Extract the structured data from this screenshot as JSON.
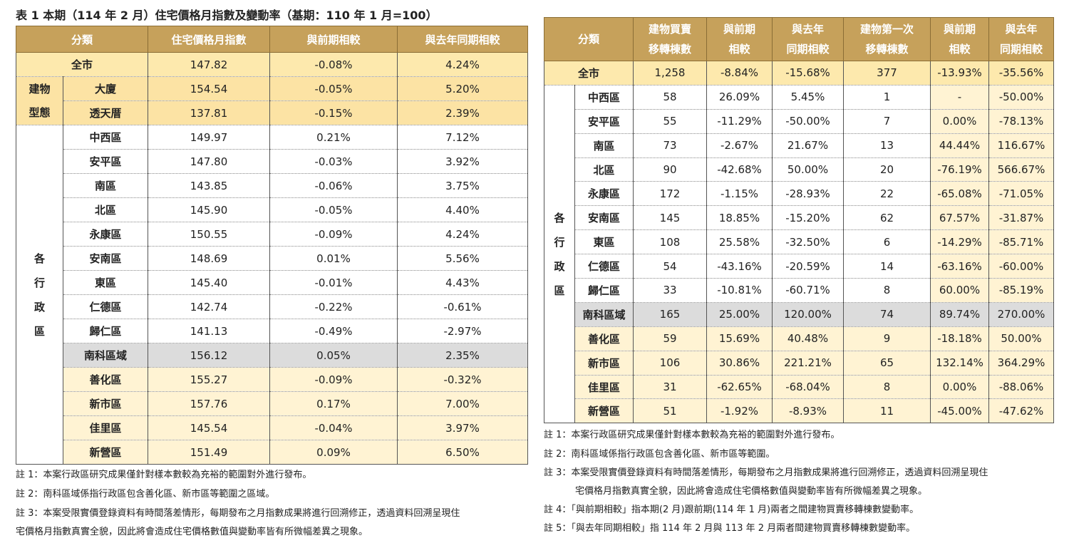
{
  "left_table": {
    "title": "表 1 本期（114 年 2 月）住宅價格月指數及變動率（基期：110 年 1 月=100）",
    "header": [
      "分類",
      "住宅價格月指數",
      "與前期相較",
      "與去年同期相較"
    ],
    "overall": {
      "label": "全市",
      "values": [
        "147.82",
        "-0.08%",
        "4.24%"
      ]
    },
    "building_type": {
      "label": "建物型態",
      "rows": [
        {
          "name": "大廈",
          "values": [
            "154.54",
            "-0.05%",
            "5.20%"
          ]
        },
        {
          "name": "透天厝",
          "values": [
            "137.81",
            "-0.15%",
            "2.39%"
          ]
        }
      ]
    },
    "districts": {
      "label": "各行政區",
      "rows": [
        {
          "name": "中西區",
          "values": [
            "149.97",
            "0.21%",
            "7.12%"
          ]
        },
        {
          "name": "安平區",
          "values": [
            "147.80",
            "-0.03%",
            "3.92%"
          ]
        },
        {
          "name": "南區",
          "values": [
            "143.85",
            "-0.06%",
            "3.75%"
          ]
        },
        {
          "name": "北區",
          "values": [
            "145.90",
            "-0.05%",
            "4.40%"
          ]
        },
        {
          "name": "永康區",
          "values": [
            "150.55",
            "-0.09%",
            "4.24%"
          ]
        },
        {
          "name": "安南區",
          "values": [
            "148.69",
            "0.01%",
            "5.56%"
          ]
        },
        {
          "name": "東區",
          "values": [
            "145.40",
            "-0.01%",
            "4.43%"
          ]
        },
        {
          "name": "仁德區",
          "values": [
            "142.74",
            "-0.22%",
            "-0.61%"
          ]
        },
        {
          "name": "歸仁區",
          "values": [
            "141.13",
            "-0.49%",
            "-2.97%"
          ]
        },
        {
          "name": "南科區域",
          "values": [
            "156.12",
            "0.05%",
            "2.35%"
          ]
        },
        {
          "name": "善化區",
          "values": [
            "155.27",
            "-0.09%",
            "-0.32%"
          ]
        },
        {
          "name": "新市區",
          "values": [
            "157.76",
            "0.17%",
            "7.00%"
          ]
        },
        {
          "name": "佳里區",
          "values": [
            "145.54",
            "-0.04%",
            "3.97%"
          ]
        },
        {
          "name": "新營區",
          "values": [
            "151.49",
            "0.09%",
            "6.50%"
          ]
        }
      ]
    }
  },
  "left_notes": [
    "註 1：本案行政區研究成果僅針對樣本數較為充裕的範圍對外進行發布。",
    "註 2：南科區域係指行政區包含善化區、新市區等範圍之區域。",
    "註 3：本案受限實價登錄資料有時間落差情形，每期發布之月指數成果將進行回溯修正，透過資料回溯呈現住",
    "宅價格月指數真實全貌，因此將會造成住宅價格數值與變動率皆有所微幅差異之現象。"
  ],
  "right_table": {
    "header": [
      [
        "分類"
      ],
      [
        "建物買賣",
        "移轉棟數"
      ],
      [
        "與前期",
        "相較"
      ],
      [
        "與去年",
        "同期相較"
      ],
      [
        "建物第一次",
        "移轉棟數"
      ],
      [
        "與前期",
        "相較"
      ],
      [
        "與去年",
        "同期相較"
      ]
    ],
    "overall": {
      "label": "全市",
      "values": [
        "1,258",
        "-8.84%",
        "-15.68%",
        "377",
        "-13.93%",
        "-35.56%"
      ]
    },
    "districts": {
      "label": "各行政區",
      "rows": [
        {
          "name": "中西區",
          "values": [
            "58",
            "26.09%",
            "5.45%",
            "1",
            "-",
            "-50.00%"
          ]
        },
        {
          "name": "安平區",
          "values": [
            "55",
            "-11.29%",
            "-50.00%",
            "7",
            "0.00%",
            "-78.13%"
          ]
        },
        {
          "name": "南區",
          "values": [
            "73",
            "-2.67%",
            "21.67%",
            "13",
            "44.44%",
            "116.67%"
          ]
        },
        {
          "name": "北區",
          "values": [
            "90",
            "-42.68%",
            "50.00%",
            "20",
            "-76.19%",
            "566.67%"
          ]
        },
        {
          "name": "永康區",
          "values": [
            "172",
            "-1.15%",
            "-28.93%",
            "22",
            "-65.08%",
            "-71.05%"
          ]
        },
        {
          "name": "安南區",
          "values": [
            "145",
            "18.85%",
            "-15.20%",
            "62",
            "67.57%",
            "-31.87%"
          ]
        },
        {
          "name": "東區",
          "values": [
            "108",
            "25.58%",
            "-32.50%",
            "6",
            "-14.29%",
            "-85.71%"
          ]
        },
        {
          "name": "仁德區",
          "values": [
            "54",
            "-43.16%",
            "-20.59%",
            "14",
            "-63.16%",
            "-60.00%"
          ]
        },
        {
          "name": "歸仁區",
          "values": [
            "33",
            "-10.81%",
            "-60.71%",
            "8",
            "60.00%",
            "-85.19%"
          ]
        },
        {
          "name": "南科區域",
          "values": [
            "165",
            "25.00%",
            "120.00%",
            "74",
            "89.74%",
            "270.00%"
          ]
        },
        {
          "name": "善化區",
          "values": [
            "59",
            "15.69%",
            "40.48%",
            "9",
            "-18.18%",
            "50.00%"
          ]
        },
        {
          "name": "新市區",
          "values": [
            "106",
            "30.86%",
            "221.21%",
            "65",
            "132.14%",
            "364.29%"
          ]
        },
        {
          "name": "佳里區",
          "values": [
            "31",
            "-62.65%",
            "-68.04%",
            "8",
            "0.00%",
            "-88.06%"
          ]
        },
        {
          "name": "新營區",
          "values": [
            "51",
            "-1.92%",
            "-8.93%",
            "11",
            "-45.00%",
            "-47.62%"
          ]
        }
      ]
    }
  },
  "right_notes": [
    "註 1：本案行政區研究成果僅針對樣本數較為充裕的範圍對外進行發布。",
    "註 2：南科區域係指行政區包含善化區、新市區等範圍。",
    "註 3：本案受限實價登錄資料有時間落差情形，每期發布之月指數成果將進行回溯修正，透過資料回溯呈現住",
    "宅價格月指數真實全貌，因此將會造成住宅價格數值與變動率皆有所微幅差異之現象。",
    "註 4：「與前期相較」指本期(2 月)跟前期(114 年 1 月)兩者之間建物買賣移轉棟數變動率。",
    "註 5：「與去年同期相較」指 114 年 2 月與 113 年 2 月兩者間建物買賣移轉棟數變動率。"
  ]
}
